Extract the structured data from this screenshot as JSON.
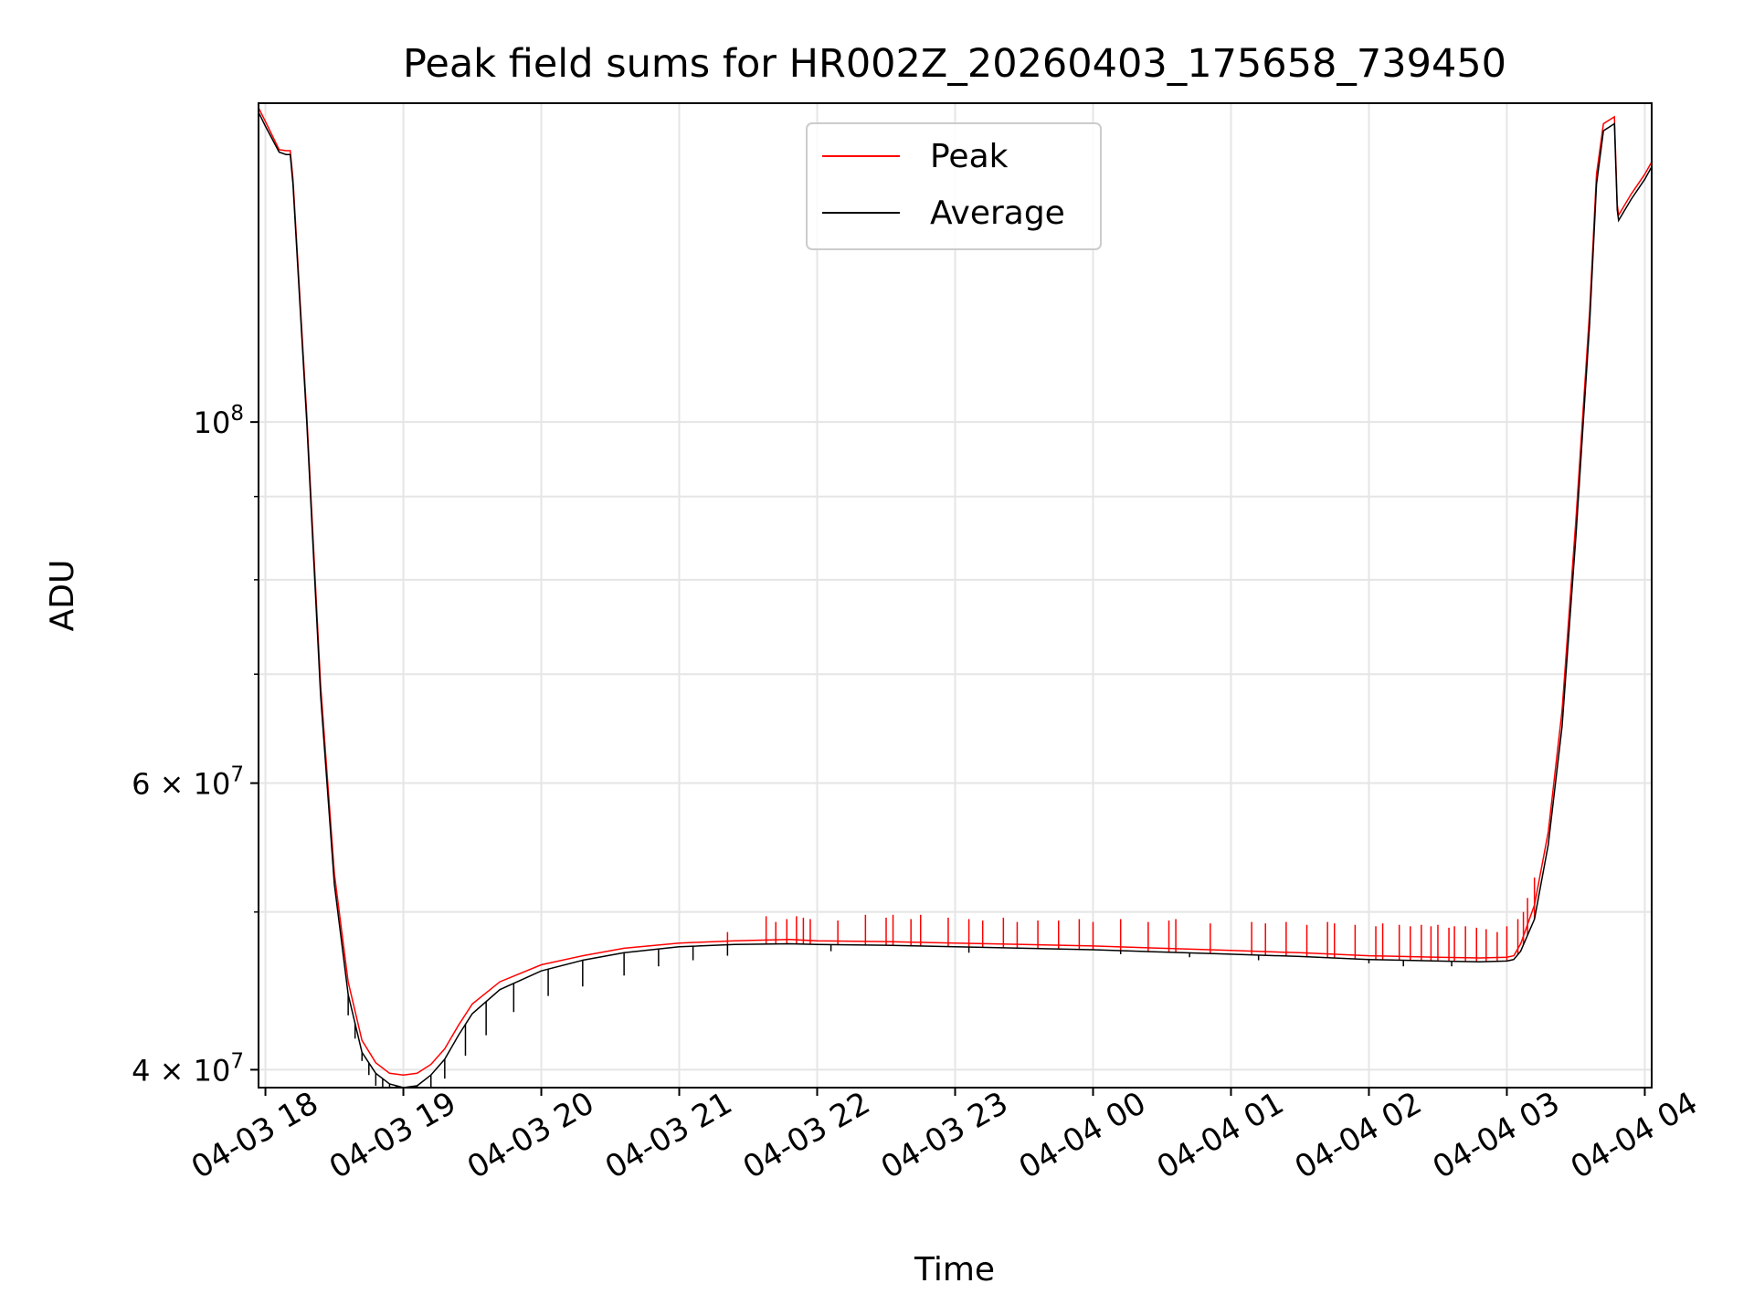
{
  "chart_data": {
    "type": "line",
    "title": "Peak field sums for HR002Z_20260403_175658_739450",
    "xlabel": "Time",
    "ylabel": "ADU",
    "yscale": "log",
    "ylim": [
      39000000,
      157000000
    ],
    "xlim_hours": [
      -0.05,
      10.05
    ],
    "x_tick_labels": [
      "04-03 18",
      "04-03 19",
      "04-03 20",
      "04-03 21",
      "04-03 22",
      "04-03 23",
      "04-04 00",
      "04-04 01",
      "04-04 02",
      "04-04 03",
      "04-04 04"
    ],
    "x_tick_hours": [
      0,
      1,
      2,
      3,
      4,
      5,
      6,
      7,
      8,
      9,
      10
    ],
    "y_tick_labels": [
      {
        "value": 40000000,
        "mantissa": "4",
        "times": "×",
        "base": "10",
        "exp": "7"
      },
      {
        "value": 60000000,
        "mantissa": "6",
        "times": "×",
        "base": "10",
        "exp": "7"
      },
      {
        "value": 100000000,
        "mantissa": "",
        "times": "",
        "base": "10",
        "exp": "8"
      }
    ],
    "y_minor_values": [
      50000000,
      70000000,
      80000000,
      90000000
    ],
    "grid": true,
    "legend_position": "top-center",
    "series": [
      {
        "name": "Peak",
        "color": "#ff0000"
      },
      {
        "name": "Average",
        "color": "#000000"
      }
    ],
    "x_hours": [
      -0.05,
      0.0,
      0.1,
      0.15,
      0.18,
      0.2,
      0.3,
      0.4,
      0.5,
      0.6,
      0.7,
      0.8,
      0.9,
      1.0,
      1.1,
      1.2,
      1.3,
      1.4,
      1.5,
      1.7,
      2.0,
      2.3,
      2.6,
      3.0,
      3.4,
      3.8,
      4.0,
      4.5,
      5.0,
      5.5,
      6.0,
      6.5,
      7.0,
      7.5,
      8.0,
      8.5,
      8.8,
      9.0,
      9.05,
      9.1,
      9.2,
      9.3,
      9.4,
      9.5,
      9.6,
      9.65,
      9.7,
      9.78,
      9.8,
      9.81,
      9.9,
      10.0,
      10.05
    ],
    "average_values": [
      155000000,
      152000000,
      146500000,
      146000000,
      146000000,
      140000000,
      100000000,
      68000000,
      52000000,
      44500000,
      41000000,
      39800000,
      39200000,
      39000000,
      39100000,
      39700000,
      40600000,
      42000000,
      43300000,
      44800000,
      46000000,
      46700000,
      47200000,
      47600000,
      47750000,
      47800000,
      47750000,
      47700000,
      47600000,
      47500000,
      47400000,
      47250000,
      47100000,
      46950000,
      46750000,
      46650000,
      46600000,
      46650000,
      46750000,
      47300000,
      49500000,
      55000000,
      65000000,
      85000000,
      115000000,
      140000000,
      151000000,
      152500000,
      135000000,
      133000000,
      137000000,
      141000000,
      143500000
    ],
    "peak_values": [
      156000000,
      153000000,
      147000000,
      146800000,
      146800000,
      141000000,
      101000000,
      69000000,
      52800000,
      45300000,
      41700000,
      40400000,
      39800000,
      39700000,
      39800000,
      40300000,
      41200000,
      42600000,
      43900000,
      45300000,
      46400000,
      47000000,
      47500000,
      47850000,
      48000000,
      48100000,
      48000000,
      47950000,
      47850000,
      47750000,
      47650000,
      47500000,
      47350000,
      47200000,
      47000000,
      46900000,
      46850000,
      46900000,
      47000000,
      47800000,
      50500000,
      56000000,
      66500000,
      87000000,
      117000000,
      142000000,
      152500000,
      154000000,
      136000000,
      134000000,
      138000000,
      142000000,
      144500000
    ],
    "peak_spike_hours": [
      3.35,
      3.63,
      3.7,
      3.78,
      3.85,
      3.9,
      3.95,
      4.15,
      4.35,
      4.5,
      4.55,
      4.68,
      4.75,
      4.95,
      5.1,
      5.2,
      5.35,
      5.45,
      5.6,
      5.75,
      5.9,
      6.0,
      6.2,
      6.4,
      6.55,
      6.6,
      6.85,
      7.15,
      7.25,
      7.4,
      7.55,
      7.7,
      7.75,
      7.9,
      8.05,
      8.1,
      8.22,
      8.3,
      8.38,
      8.45,
      8.5,
      8.58,
      8.62,
      8.7,
      8.78,
      8.85,
      8.93,
      9.0,
      9.08,
      9.12,
      9.15,
      9.2
    ],
    "peak_spike_values": [
      48600000,
      49700000,
      49300000,
      49500000,
      49700000,
      49600000,
      49500000,
      49400000,
      49800000,
      49600000,
      49800000,
      49500000,
      49800000,
      49600000,
      49500000,
      49400000,
      49600000,
      49300000,
      49400000,
      49400000,
      49500000,
      49300000,
      49500000,
      49300000,
      49400000,
      49500000,
      49200000,
      49300000,
      49200000,
      49300000,
      49100000,
      49300000,
      49200000,
      49100000,
      49000000,
      49200000,
      49100000,
      49000000,
      49100000,
      49000000,
      49100000,
      48900000,
      49000000,
      49000000,
      48900000,
      48800000,
      48600000,
      49000000,
      49500000,
      50000000,
      51000000,
      52500000
    ],
    "average_dip_hours": [
      0.6,
      0.65,
      0.7,
      0.75,
      0.8,
      0.85,
      0.9,
      0.95,
      1.0,
      1.05,
      1.1,
      1.2,
      1.3,
      1.45,
      1.6,
      1.8,
      2.05,
      2.3,
      2.6,
      2.85,
      3.1,
      3.35,
      4.1,
      5.1,
      6.2,
      6.7,
      7.2,
      8.0,
      8.25,
      8.6
    ],
    "average_dip_values": [
      43200000,
      41800000,
      40500000,
      39700000,
      39100000,
      38800000,
      38600000,
      38500000,
      38500000,
      38600000,
      38700000,
      39000000,
      39500000,
      40800000,
      42000000,
      43400000,
      44400000,
      45000000,
      45700000,
      46300000,
      46700000,
      47000000,
      47300000,
      47200000,
      47100000,
      46900000,
      46700000,
      46500000,
      46300000,
      46300000
    ]
  }
}
